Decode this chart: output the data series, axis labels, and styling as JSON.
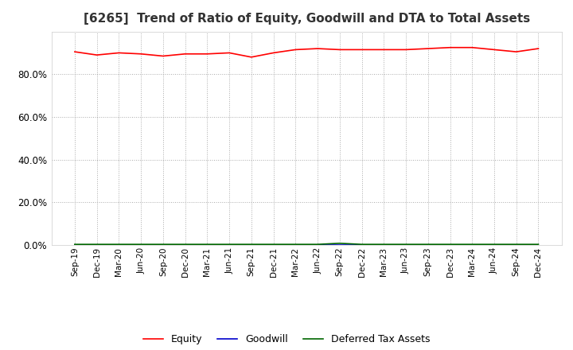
{
  "title": "[6265]  Trend of Ratio of Equity, Goodwill and DTA to Total Assets",
  "x_labels": [
    "Sep-19",
    "Dec-19",
    "Mar-20",
    "Jun-20",
    "Sep-20",
    "Dec-20",
    "Mar-21",
    "Jun-21",
    "Sep-21",
    "Dec-21",
    "Mar-22",
    "Jun-22",
    "Sep-22",
    "Dec-22",
    "Mar-23",
    "Jun-23",
    "Sep-23",
    "Dec-23",
    "Mar-24",
    "Jun-24",
    "Sep-24",
    "Dec-24"
  ],
  "equity": [
    90.5,
    89.0,
    90.0,
    89.5,
    88.5,
    89.5,
    89.5,
    90.0,
    88.0,
    90.0,
    91.5,
    92.0,
    91.5,
    91.5,
    91.5,
    91.5,
    92.0,
    92.5,
    92.5,
    91.5,
    90.5,
    92.0
  ],
  "goodwill": [
    0.0,
    0.0,
    0.0,
    0.0,
    0.0,
    0.0,
    0.0,
    0.0,
    0.0,
    0.0,
    0.0,
    0.0,
    0.0,
    0.0,
    0.0,
    0.0,
    0.0,
    0.0,
    0.0,
    0.0,
    0.0,
    0.0
  ],
  "dta": [
    0.3,
    0.3,
    0.3,
    0.3,
    0.3,
    0.3,
    0.3,
    0.3,
    0.3,
    0.3,
    0.3,
    0.3,
    0.8,
    0.3,
    0.3,
    0.3,
    0.3,
    0.3,
    0.3,
    0.3,
    0.3,
    0.3
  ],
  "equity_color": "#ff0000",
  "goodwill_color": "#0000cc",
  "dta_color": "#006600",
  "ylim": [
    0,
    100
  ],
  "yticks": [
    0,
    20,
    40,
    60,
    80
  ],
  "background_color": "#ffffff",
  "grid_color": "#aaaaaa",
  "title_fontsize": 11,
  "title_color": "#333333"
}
